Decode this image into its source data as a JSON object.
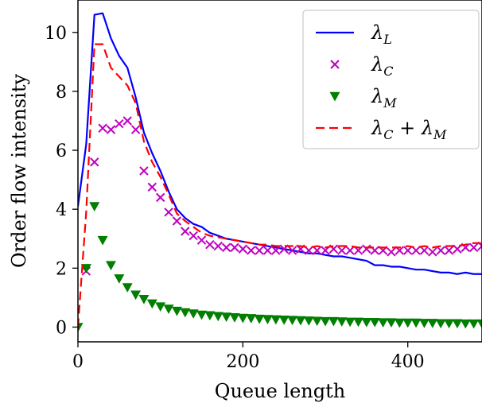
{
  "chart_data": {
    "type": "line",
    "xlabel": "Queue length",
    "ylabel": "Order flow intensity",
    "xlim": [
      0,
      490
    ],
    "ylim": [
      -0.5,
      11.1
    ],
    "xticks": [
      0,
      200,
      400
    ],
    "yticks": [
      0,
      2,
      4,
      6,
      8,
      10
    ],
    "grid": false,
    "legend": {
      "placement": "top-right"
    },
    "series": [
      {
        "name": "λ_L",
        "legend_label": "λ",
        "legend_sub": "L",
        "style": "solid-line",
        "color": "#0000ff",
        "x": [
          0,
          10,
          20,
          30,
          40,
          50,
          60,
          70,
          80,
          90,
          100,
          110,
          120,
          130,
          140,
          150,
          160,
          170,
          180,
          190,
          200,
          210,
          220,
          230,
          240,
          250,
          260,
          270,
          280,
          290,
          300,
          310,
          320,
          330,
          340,
          350,
          360,
          370,
          380,
          390,
          400,
          410,
          420,
          430,
          440,
          450,
          460,
          470,
          480,
          490
        ],
        "y": [
          4.1,
          6.2,
          10.6,
          10.65,
          9.8,
          9.2,
          8.8,
          7.8,
          6.6,
          5.9,
          5.3,
          4.6,
          4.0,
          3.7,
          3.5,
          3.4,
          3.2,
          3.1,
          3.0,
          2.95,
          2.9,
          2.85,
          2.8,
          2.75,
          2.7,
          2.65,
          2.6,
          2.55,
          2.5,
          2.5,
          2.45,
          2.4,
          2.4,
          2.35,
          2.3,
          2.25,
          2.1,
          2.1,
          2.05,
          2.05,
          2.0,
          1.95,
          1.95,
          1.9,
          1.85,
          1.85,
          1.8,
          1.85,
          1.8,
          1.8
        ]
      },
      {
        "name": "λ_C",
        "legend_label": "λ",
        "legend_sub": "C",
        "style": "x-markers",
        "color": "#bf00bf",
        "x": [
          10,
          20,
          30,
          40,
          50,
          60,
          70,
          80,
          90,
          100,
          110,
          120,
          130,
          140,
          150,
          160,
          170,
          180,
          190,
          200,
          210,
          220,
          230,
          240,
          250,
          260,
          270,
          280,
          290,
          300,
          310,
          320,
          330,
          340,
          350,
          360,
          370,
          380,
          390,
          400,
          410,
          420,
          430,
          440,
          450,
          460,
          470,
          480,
          490
        ],
        "y": [
          1.9,
          5.6,
          6.75,
          6.7,
          6.9,
          7.0,
          6.7,
          5.3,
          4.75,
          4.4,
          3.9,
          3.6,
          3.25,
          3.1,
          2.95,
          2.8,
          2.75,
          2.7,
          2.7,
          2.65,
          2.6,
          2.6,
          2.6,
          2.6,
          2.65,
          2.6,
          2.65,
          2.6,
          2.6,
          2.6,
          2.65,
          2.6,
          2.6,
          2.6,
          2.65,
          2.6,
          2.6,
          2.55,
          2.6,
          2.6,
          2.6,
          2.6,
          2.55,
          2.6,
          2.6,
          2.65,
          2.7,
          2.7,
          2.75
        ]
      },
      {
        "name": "λ_M",
        "legend_label": "λ",
        "legend_sub": "M",
        "style": "triangle-markers",
        "color": "#007f00",
        "x": [
          0,
          10,
          20,
          30,
          40,
          50,
          60,
          70,
          80,
          90,
          100,
          110,
          120,
          130,
          140,
          150,
          160,
          170,
          180,
          190,
          200,
          210,
          220,
          230,
          240,
          250,
          260,
          270,
          280,
          290,
          300,
          310,
          320,
          330,
          340,
          350,
          360,
          370,
          380,
          390,
          400,
          410,
          420,
          430,
          440,
          450,
          460,
          470,
          480,
          490
        ],
        "y": [
          0.0,
          2.0,
          4.1,
          2.95,
          2.1,
          1.65,
          1.35,
          1.1,
          0.95,
          0.8,
          0.7,
          0.62,
          0.55,
          0.5,
          0.46,
          0.42,
          0.4,
          0.37,
          0.35,
          0.33,
          0.31,
          0.3,
          0.28,
          0.27,
          0.26,
          0.25,
          0.24,
          0.23,
          0.22,
          0.21,
          0.2,
          0.2,
          0.19,
          0.18,
          0.18,
          0.17,
          0.17,
          0.16,
          0.16,
          0.15,
          0.15,
          0.15,
          0.14,
          0.14,
          0.13,
          0.13,
          0.13,
          0.12,
          0.12,
          0.12
        ]
      },
      {
        "name": "λ_C + λ_M",
        "legend_label": "λ",
        "legend_sub": "C",
        "legend_mid": " + λ",
        "legend_sub2": "M",
        "style": "dashed-line",
        "color": "#ff0000",
        "x": [
          0,
          10,
          20,
          30,
          40,
          50,
          60,
          70,
          80,
          90,
          100,
          110,
          120,
          130,
          140,
          150,
          160,
          170,
          180,
          190,
          200,
          210,
          220,
          230,
          240,
          250,
          260,
          270,
          280,
          290,
          300,
          310,
          320,
          330,
          340,
          350,
          360,
          370,
          380,
          390,
          400,
          410,
          420,
          430,
          440,
          450,
          460,
          470,
          480,
          490
        ],
        "y": [
          0.0,
          3.9,
          9.6,
          9.6,
          8.8,
          8.5,
          8.2,
          7.6,
          6.3,
          5.6,
          5.1,
          4.5,
          3.85,
          3.6,
          3.4,
          3.2,
          3.1,
          3.05,
          3.0,
          2.95,
          2.9,
          2.85,
          2.8,
          2.8,
          2.75,
          2.75,
          2.75,
          2.75,
          2.7,
          2.75,
          2.7,
          2.75,
          2.75,
          2.75,
          2.7,
          2.7,
          2.7,
          2.7,
          2.7,
          2.7,
          2.75,
          2.7,
          2.75,
          2.7,
          2.75,
          2.75,
          2.75,
          2.8,
          2.85,
          2.85
        ]
      }
    ]
  }
}
